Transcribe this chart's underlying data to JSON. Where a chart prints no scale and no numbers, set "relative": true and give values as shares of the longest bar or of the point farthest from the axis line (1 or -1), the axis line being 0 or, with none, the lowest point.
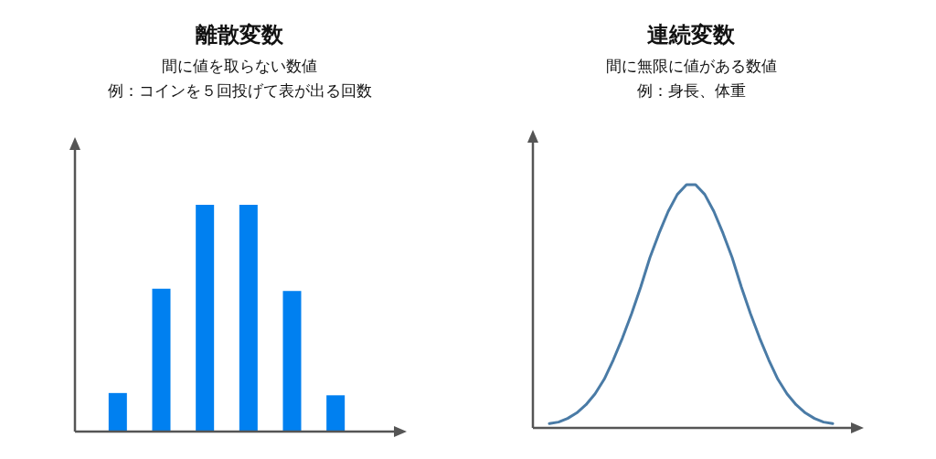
{
  "chart_data": [
    {
      "type": "bar",
      "title": "離散変数",
      "subtitle": "間に値を取らない数値",
      "annotations": [
        "例：コインを５回投げて表が出る回数"
      ],
      "relative": true,
      "categories": [
        null,
        null,
        null,
        null,
        null,
        null
      ],
      "values": [
        0.17,
        0.63,
        1,
        1,
        0.62,
        0.16
      ],
      "color": "#0080f0"
    },
    {
      "type": "line",
      "title": "連続変数",
      "subtitle": "間に無限に値がある数値",
      "annotations": [
        "例：身長、体重"
      ],
      "relative": true,
      "categories": [
        null,
        null,
        null,
        null,
        null,
        null,
        null,
        null,
        null,
        null,
        null,
        null,
        null,
        null,
        null,
        null,
        null,
        null,
        null,
        null,
        null,
        null,
        null,
        null,
        null,
        null,
        null,
        null,
        null,
        null,
        null,
        null
      ],
      "series": [
        {
          "color": "#4a7ba6",
          "values": [
            0.018,
            0.024,
            0.039,
            0.062,
            0.095,
            0.14,
            0.2,
            0.28,
            0.37,
            0.47,
            0.58,
            0.7,
            0.8,
            0.89,
            0.96,
            1,
            1,
            0.96,
            0.89,
            0.8,
            0.7,
            0.58,
            0.47,
            0.37,
            0.28,
            0.2,
            0.14,
            0.095,
            0.062,
            0.039,
            0.024,
            0.018
          ]
        }
      ]
    }
  ]
}
